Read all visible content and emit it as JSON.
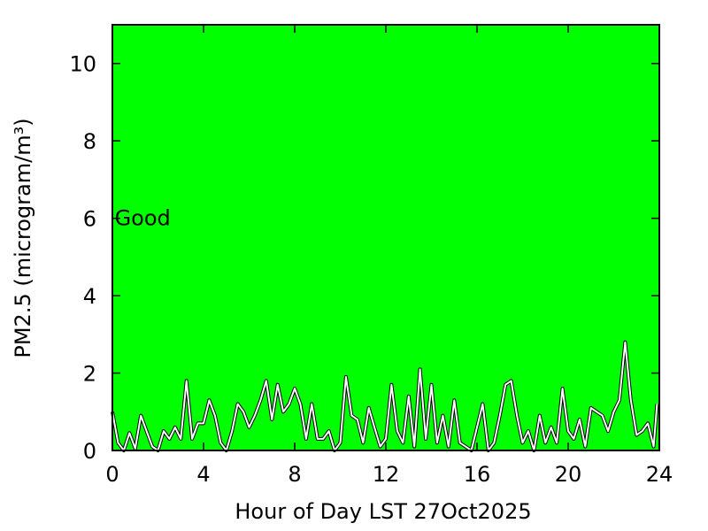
{
  "chart_data": {
    "type": "line",
    "xlabel": "Hour of Day LST 27Oct2025",
    "ylabel": "PM2.5 (microgram/m³)",
    "annotation": {
      "text": "Good",
      "x": 0.1,
      "y": 6
    },
    "background": "#00ff00",
    "series": [
      {
        "color": "#ffffff",
        "x": [
          0,
          0.25,
          0.5,
          0.75,
          1,
          1.25,
          1.5,
          1.75,
          2,
          2.25,
          2.5,
          2.75,
          3,
          3.25,
          3.5,
          3.75,
          4,
          4.25,
          4.5,
          4.75,
          5,
          5.25,
          5.5,
          5.75,
          6,
          6.25,
          6.5,
          6.75,
          7,
          7.25,
          7.5,
          7.75,
          8,
          8.25,
          8.5,
          8.75,
          9,
          9.25,
          9.5,
          9.75,
          10,
          10.25,
          10.5,
          10.75,
          11,
          11.25,
          11.5,
          11.75,
          12,
          12.25,
          12.5,
          12.75,
          13,
          13.25,
          13.5,
          13.75,
          14,
          14.25,
          14.5,
          14.75,
          15,
          15.25,
          15.5,
          15.75,
          16,
          16.25,
          16.5,
          16.75,
          17,
          17.25,
          17.5,
          17.75,
          18,
          18.25,
          18.5,
          18.75,
          19,
          19.25,
          19.5,
          19.75,
          20,
          20.25,
          20.5,
          20.75,
          21,
          21.25,
          21.5,
          21.75,
          22,
          22.25,
          22.5,
          22.75,
          23,
          23.25,
          23.5,
          23.75,
          23.9
        ],
        "values": [
          1.0,
          0.2,
          0.0,
          0.45,
          0.05,
          0.9,
          0.5,
          0.1,
          0.0,
          0.5,
          0.3,
          0.6,
          0.3,
          1.8,
          0.3,
          0.7,
          0.7,
          1.3,
          0.9,
          0.2,
          0.0,
          0.5,
          1.2,
          1.0,
          0.6,
          0.9,
          1.3,
          1.8,
          0.8,
          1.7,
          1.0,
          1.2,
          1.6,
          1.2,
          0.3,
          1.2,
          0.3,
          0.3,
          0.5,
          0.0,
          0.2,
          1.9,
          0.9,
          0.8,
          0.2,
          1.1,
          0.6,
          0.1,
          0.3,
          1.7,
          0.5,
          0.2,
          1.4,
          0.1,
          2.1,
          0.3,
          1.7,
          0.2,
          0.9,
          0.1,
          1.3,
          0.2,
          0.1,
          0.0,
          0.6,
          1.2,
          0.0,
          0.2,
          0.9,
          1.7,
          1.8,
          0.9,
          0.2,
          0.5,
          0.0,
          0.9,
          0.2,
          0.6,
          0.2,
          1.6,
          0.5,
          0.3,
          0.8,
          0.1,
          1.1,
          1.0,
          0.9,
          0.5,
          1.0,
          1.3,
          2.8,
          1.3,
          0.4,
          0.5,
          0.7,
          0.1,
          1.2
        ]
      }
    ],
    "xlim": [
      0,
      24
    ],
    "xticks": [
      0,
      4,
      8,
      12,
      16,
      20,
      24
    ],
    "ylim": [
      0,
      11
    ],
    "yticks": [
      0,
      2,
      4,
      6,
      8,
      10
    ]
  }
}
